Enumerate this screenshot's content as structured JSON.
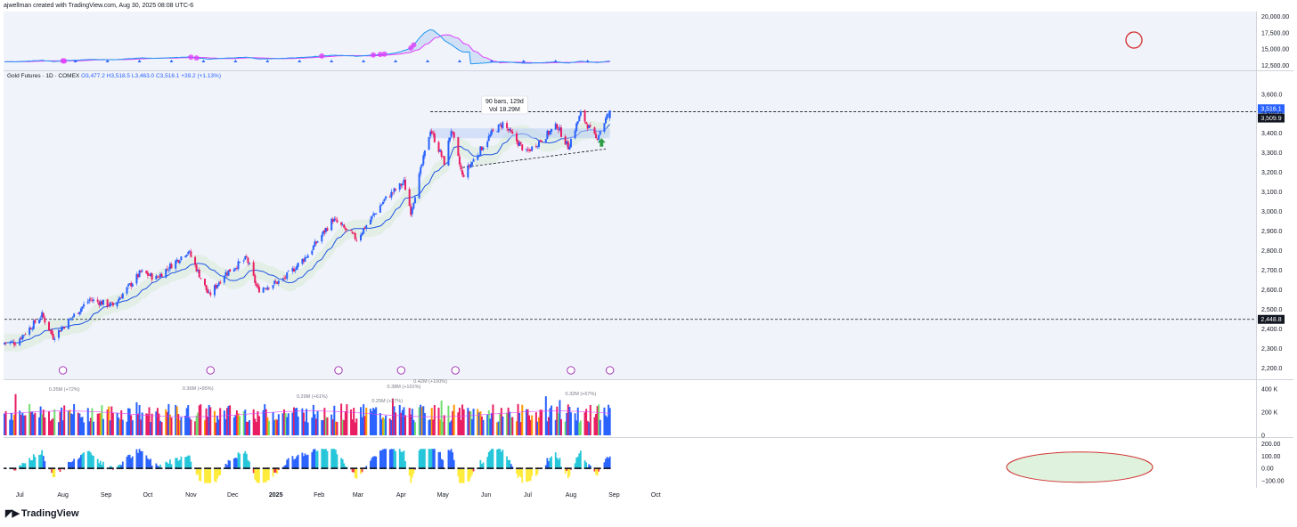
{
  "attribution": "ajwellman created with TradingView.com, Aug 30, 2025 08:08 UTC-6",
  "brand": "TradingView",
  "brand_icon": "tradingview-logo-icon",
  "legend": {
    "symbol": "Gold Futures · 1D · COMEX",
    "open": "O3,477.2",
    "high": "H3,518.5",
    "low": "L3,463.0",
    "close": "C3,516.1",
    "change": "+39.2 (+1.13%)"
  },
  "colors": {
    "up": "#2962ff",
    "down": "#e91e63",
    "ma_line": "#1e53e5",
    "band_fill": "#e3efe6",
    "vol_up": "#2962ff",
    "vol_down": "#e91e63",
    "vol_orange": "#ff9800",
    "vol_green": "#6ee06e",
    "osc_teal": "#26c6da",
    "osc_blue": "#2962ff",
    "osc_red": "#f23645",
    "osc_yellow": "#ffeb3b",
    "ellipse": "#d32f2f",
    "arrow_green": "#2e9e43"
  },
  "chart_data": [
    {
      "type": "line",
      "panel": "comparison-top",
      "y_ticks": [
        "20,000.00",
        "17,500.00",
        "15,000.00",
        "12,500.00"
      ],
      "ylim": [
        12000,
        20500
      ],
      "series": []
    },
    {
      "type": "candlestick",
      "panel": "price",
      "title": "Gold Futures · 1D · COMEX",
      "x_ticks": [
        "Jul",
        "Aug",
        "Sep",
        "Oct",
        "Nov",
        "Dec",
        "2025",
        "Feb",
        "Mar",
        "Apr",
        "May",
        "Jun",
        "Jul",
        "Aug",
        "Sep",
        "Oct"
      ],
      "y_ticks": [
        "3,600.0",
        "3,500.0",
        "3,400.0",
        "3,300.0",
        "3,200.0",
        "3,100.0",
        "3,000.0",
        "2,900.0",
        "2,800.0",
        "2,700.0",
        "2,600.0",
        "2,500.0",
        "2,400.0",
        "2,300.0",
        "2,200.0"
      ],
      "ylim": [
        2170,
        3640
      ],
      "price_labels": [
        "3,516.1",
        "3,509.9",
        "2,448.8"
      ],
      "horizontal_levels": [
        3509.9,
        2448.8
      ],
      "measure_box": {
        "bars": "90 bars, 129d",
        "volume": "Vol 18.29M"
      },
      "anchors": [
        [
          "2024-06-28",
          2330
        ],
        [
          "2024-07-17",
          2470
        ],
        [
          "2024-07-25",
          2360
        ],
        [
          "2024-08-20",
          2550
        ],
        [
          "2024-09-06",
          2520
        ],
        [
          "2024-09-26",
          2690
        ],
        [
          "2024-10-07",
          2660
        ],
        [
          "2024-10-30",
          2800
        ],
        [
          "2024-11-14",
          2570
        ],
        [
          "2024-11-25",
          2680
        ],
        [
          "2024-12-11",
          2760
        ],
        [
          "2024-12-19",
          2600
        ],
        [
          "2025-01-06",
          2650
        ],
        [
          "2025-01-24",
          2780
        ],
        [
          "2025-02-11",
          2960
        ],
        [
          "2025-02-28",
          2860
        ],
        [
          "2025-03-20",
          3060
        ],
        [
          "2025-04-03",
          3150
        ],
        [
          "2025-04-08",
          3000
        ],
        [
          "2025-04-22",
          3420
        ],
        [
          "2025-05-02",
          3250
        ],
        [
          "2025-05-07",
          3420
        ],
        [
          "2025-05-15",
          3180
        ],
        [
          "2025-06-05",
          3400
        ],
        [
          "2025-06-13",
          3450
        ],
        [
          "2025-06-30",
          3300
        ],
        [
          "2025-07-22",
          3440
        ],
        [
          "2025-07-30",
          3330
        ],
        [
          "2025-08-08",
          3500
        ],
        [
          "2025-08-19",
          3370
        ],
        [
          "2025-08-29",
          3516
        ]
      ]
    },
    {
      "type": "bar",
      "panel": "volume",
      "y_ticks": [
        "400 K",
        "200 K",
        "0"
      ],
      "ylim": [
        0,
        430000
      ],
      "annotations": [
        "0.35M (+72%)",
        "0.36M (+95%)",
        "0.29M (+61%)",
        "0.25M (+37%)",
        "0.38M (+101%)",
        "0.42M (+100%)",
        "0.32M (+67%)"
      ]
    },
    {
      "type": "bar",
      "panel": "oscillator",
      "y_ticks": [
        "200.00",
        "100.00",
        "0.00",
        "−100.00"
      ],
      "ylim": [
        -130,
        220
      ]
    }
  ]
}
